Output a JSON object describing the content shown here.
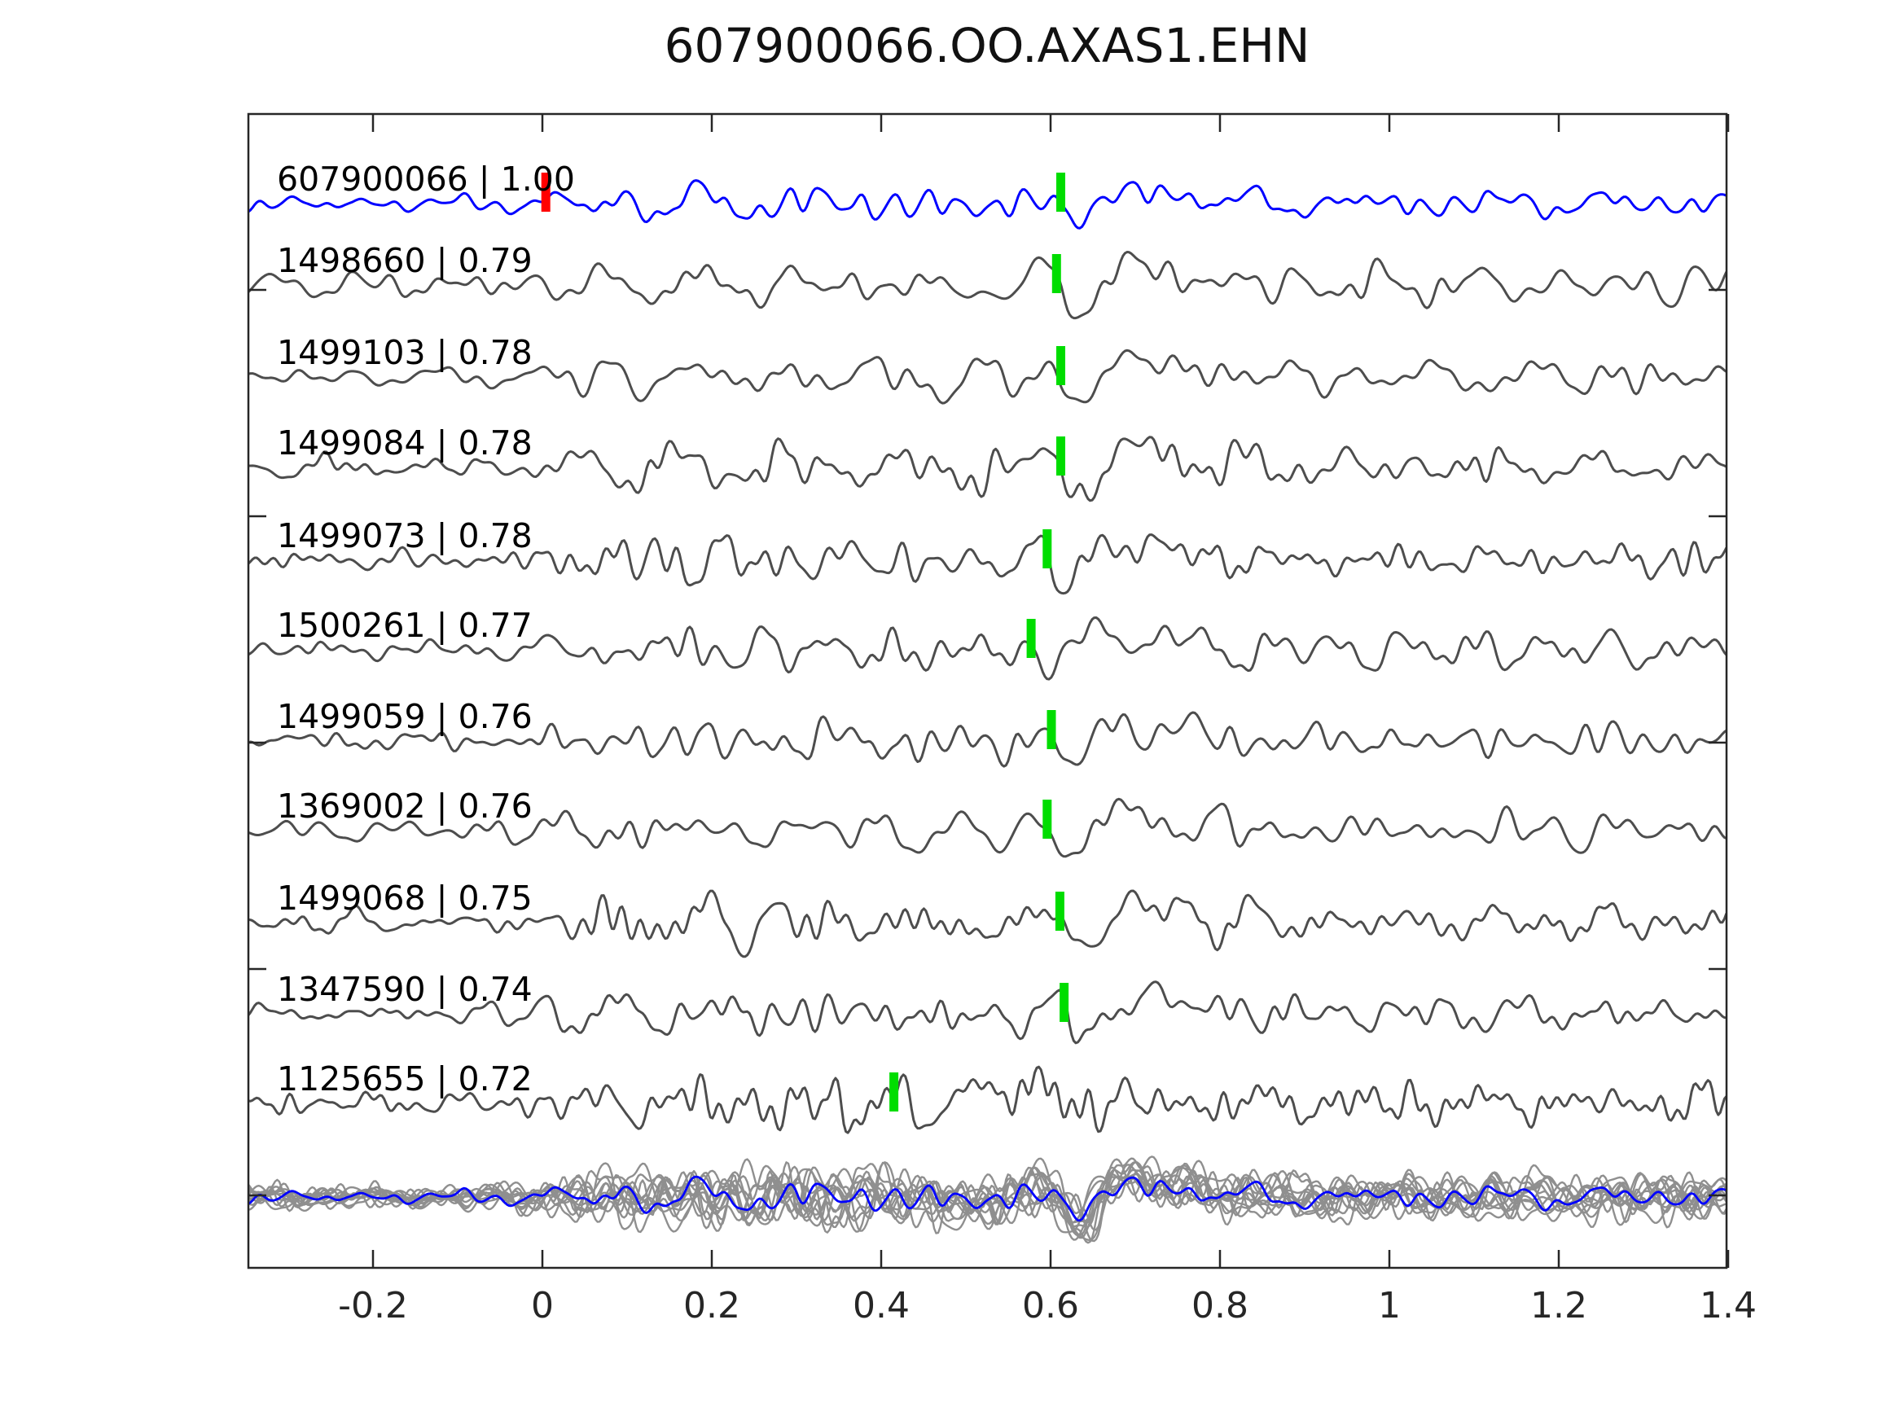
{
  "chart_data": {
    "type": "line",
    "title": "607900066.OO.AXAS1.EHN",
    "xlim": [
      -0.347,
      1.398
    ],
    "xtick_values": [
      -0.2,
      0,
      0.2,
      0.4,
      0.6,
      0.8,
      1,
      1.2,
      1.4
    ],
    "xtick_labels": [
      "-0.2",
      "0",
      "0.2",
      "0.4",
      "0.6",
      "0.8",
      "1",
      "1.2",
      "1.4"
    ],
    "grid": false,
    "legend": "none",
    "colors": {
      "template_trace": "#0000ff",
      "match_trace": "#4d4d4d",
      "stack_trace": "#8f8f8f",
      "pick_marker": "#00dd00",
      "template_pick_marker": "#ff0000",
      "axis": "#262626",
      "label_text": "#000000"
    },
    "traces": [
      {
        "id": "607900066",
        "correlation": "1.00",
        "label": "607900066 | 1.00",
        "role": "template",
        "color": "#0000ff",
        "picks": [
          {
            "time": 0.004,
            "color": "#ff0000"
          },
          {
            "time": 0.612,
            "color": "#00dd00"
          }
        ],
        "synth": {
          "seed": 7,
          "rms": 9.5,
          "depth": 30,
          "reb": 20,
          "t0": 0.635,
          "fmul": 1.05
        }
      },
      {
        "id": "1498660",
        "correlation": "0.79",
        "label": "1498660 | 0.79",
        "role": "match",
        "color": "#4d4d4d",
        "picks": [
          {
            "time": 0.607,
            "color": "#00dd00"
          }
        ],
        "synth": {
          "seed": 21,
          "rms": 12,
          "depth": 40,
          "reb": 27,
          "t0": 0.632,
          "fmul": 1.0
        }
      },
      {
        "id": "1499103",
        "correlation": "0.78",
        "label": "1499103 | 0.78",
        "role": "match",
        "color": "#4d4d4d",
        "picks": [
          {
            "time": 0.612,
            "color": "#00dd00"
          }
        ],
        "synth": {
          "seed": 22,
          "rms": 12,
          "depth": 42,
          "reb": 27,
          "t0": 0.637,
          "fmul": 1.0
        }
      },
      {
        "id": "1499084",
        "correlation": "0.78",
        "label": "1499084 | 0.78",
        "role": "match",
        "color": "#4d4d4d",
        "picks": [
          {
            "time": 0.612,
            "color": "#00dd00"
          }
        ],
        "synth": {
          "seed": 23,
          "rms": 12,
          "depth": 42,
          "reb": 28,
          "t0": 0.637,
          "fmul": 1.0
        }
      },
      {
        "id": "1499073",
        "correlation": "0.78",
        "label": "1499073 | 0.78",
        "role": "match",
        "color": "#4d4d4d",
        "picks": [
          {
            "time": 0.596,
            "color": "#00dd00"
          }
        ],
        "synth": {
          "seed": 24,
          "rms": 13,
          "depth": 40,
          "reb": 27,
          "t0": 0.62,
          "fmul": 1.05
        }
      },
      {
        "id": "1500261",
        "correlation": "0.77",
        "label": "1500261 | 0.77",
        "role": "match",
        "color": "#4d4d4d",
        "picks": [
          {
            "time": 0.577,
            "color": "#00dd00"
          }
        ],
        "synth": {
          "seed": 25,
          "rms": 12,
          "depth": 38,
          "reb": 30,
          "t0": 0.6,
          "fmul": 1.0
        }
      },
      {
        "id": "1499059",
        "correlation": "0.76",
        "label": "1499059 | 0.76",
        "role": "match",
        "color": "#4d4d4d",
        "picks": [
          {
            "time": 0.601,
            "color": "#00dd00"
          }
        ],
        "synth": {
          "seed": 26,
          "rms": 11,
          "depth": 44,
          "reb": 28,
          "t0": 0.626,
          "fmul": 1.0
        }
      },
      {
        "id": "1369002",
        "correlation": "0.76",
        "label": "1369002 | 0.76",
        "role": "match",
        "color": "#4d4d4d",
        "picks": [
          {
            "time": 0.596,
            "color": "#00dd00"
          }
        ],
        "synth": {
          "seed": 27,
          "rms": 12,
          "depth": 44,
          "reb": 27,
          "t0": 0.621,
          "fmul": 1.0
        }
      },
      {
        "id": "1499068",
        "correlation": "0.75",
        "label": "1499068 | 0.75",
        "role": "match",
        "color": "#4d4d4d",
        "picks": [
          {
            "time": 0.611,
            "color": "#00dd00"
          }
        ],
        "synth": {
          "seed": 28,
          "rms": 13,
          "depth": 40,
          "reb": 26,
          "t0": 0.636,
          "fmul": 1.1
        }
      },
      {
        "id": "1347590",
        "correlation": "0.74",
        "label": "1347590 | 0.74",
        "role": "match",
        "color": "#4d4d4d",
        "picks": [
          {
            "time": 0.616,
            "color": "#00dd00"
          }
        ],
        "synth": {
          "seed": 29,
          "rms": 13,
          "depth": 42,
          "reb": 28,
          "t0": 0.641,
          "fmul": 1.05
        }
      },
      {
        "id": "1125655",
        "correlation": "0.72",
        "label": "1125655 | 0.72",
        "role": "match",
        "color": "#4d4d4d",
        "picks": [
          {
            "time": 0.415,
            "color": "#00dd00"
          }
        ],
        "synth": {
          "seed": 30,
          "rms": 14,
          "depth": 38,
          "reb": 30,
          "t0": 0.455,
          "fmul": 1.25
        }
      }
    ],
    "stack": {
      "description_color": "#8f8f8f",
      "template_overlay_color": "#0000ff",
      "members": [
        {
          "seed": 41,
          "rms": 13,
          "depth": 46,
          "reb": 28,
          "t0": 0.633,
          "fmul": 1.0
        },
        {
          "seed": 42,
          "rms": 15,
          "depth": 50,
          "reb": 30,
          "t0": 0.637,
          "fmul": 1.1
        },
        {
          "seed": 43,
          "rms": 12,
          "depth": 42,
          "reb": 26,
          "t0": 0.63,
          "fmul": 1.0
        },
        {
          "seed": 44,
          "rms": 16,
          "depth": 52,
          "reb": 32,
          "t0": 0.64,
          "fmul": 1.15
        },
        {
          "seed": 45,
          "rms": 13,
          "depth": 44,
          "reb": 27,
          "t0": 0.634,
          "fmul": 1.0
        },
        {
          "seed": 46,
          "rms": 14,
          "depth": 48,
          "reb": 30,
          "t0": 0.628,
          "fmul": 1.05
        },
        {
          "seed": 47,
          "rms": 12,
          "depth": 40,
          "reb": 25,
          "t0": 0.636,
          "fmul": 1.0
        },
        {
          "seed": 48,
          "rms": 17,
          "depth": 54,
          "reb": 34,
          "t0": 0.642,
          "fmul": 1.2
        },
        {
          "seed": 49,
          "rms": 13,
          "depth": 45,
          "reb": 28,
          "t0": 0.631,
          "fmul": 1.0
        },
        {
          "seed": 50,
          "rms": 14,
          "depth": 47,
          "reb": 29,
          "t0": 0.638,
          "fmul": 1.1
        },
        {
          "seed": 51,
          "rms": 12,
          "depth": 43,
          "reb": 26,
          "t0": 0.629,
          "fmul": 1.0
        },
        {
          "seed": 52,
          "rms": 15,
          "depth": 49,
          "reb": 31,
          "t0": 0.635,
          "fmul": 1.05
        }
      ],
      "template_member": {
        "seed": 7,
        "rms": 8,
        "depth": 28,
        "reb": 18,
        "t0": 0.635,
        "fmul": 1.05
      }
    }
  }
}
